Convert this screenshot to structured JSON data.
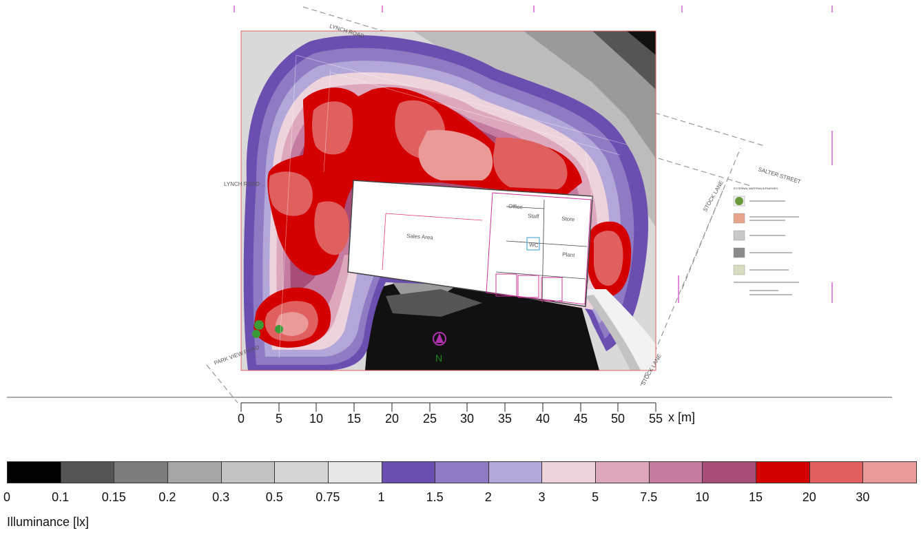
{
  "plan": {
    "streets": [
      "LYNCH ROAD",
      "SALTER STREET",
      "STOCK LANE",
      "PARK VIEW ROAD",
      "LYNCH ROAD"
    ],
    "building_labels": [
      "Sales Area",
      "Office",
      "Staff",
      "Store",
      "Plant",
      "WC"
    ],
    "legend_title": "EXTERNAL MATERIALS/FINISHES",
    "legend_items": [
      {
        "color": "#6a9a3a",
        "icon": "tree-icon"
      },
      {
        "color": "#e8a48a",
        "icon": "paving-swatch"
      },
      {
        "color": "#c8c8c8",
        "icon": "parking-swatch"
      },
      {
        "color": "#8a8a8a",
        "icon": "tarmac-swatch"
      },
      {
        "color": "#d8dcc0",
        "icon": "hardstanding-swatch"
      }
    ],
    "north_arrow_icon": "north-arrow-icon"
  },
  "scale": {
    "ticks": [
      "0",
      "5",
      "10",
      "15",
      "20",
      "25",
      "30",
      "35",
      "40",
      "45",
      "50",
      "55"
    ],
    "unit_label": "x [m]"
  },
  "colorbar": {
    "title": "Illuminance [lx]",
    "labels": [
      "0",
      "0.1",
      "0.15",
      "0.2",
      "0.3",
      "0.5",
      "0.75",
      "1",
      "1.5",
      "2",
      "3",
      "5",
      "7.5",
      "10",
      "15",
      "20",
      "30"
    ],
    "colors": [
      "#000000",
      "#555555",
      "#7d7d7d",
      "#a6a6a6",
      "#c3c3c3",
      "#d6d6d6",
      "#e7e7e7",
      "#6a4fb0",
      "#8f7ac4",
      "#b3a6d8",
      "#ecd3dc",
      "#dda7be",
      "#c57aa0",
      "#a84c78",
      "#d40000",
      "#e06060",
      "#eb9a9a"
    ]
  }
}
